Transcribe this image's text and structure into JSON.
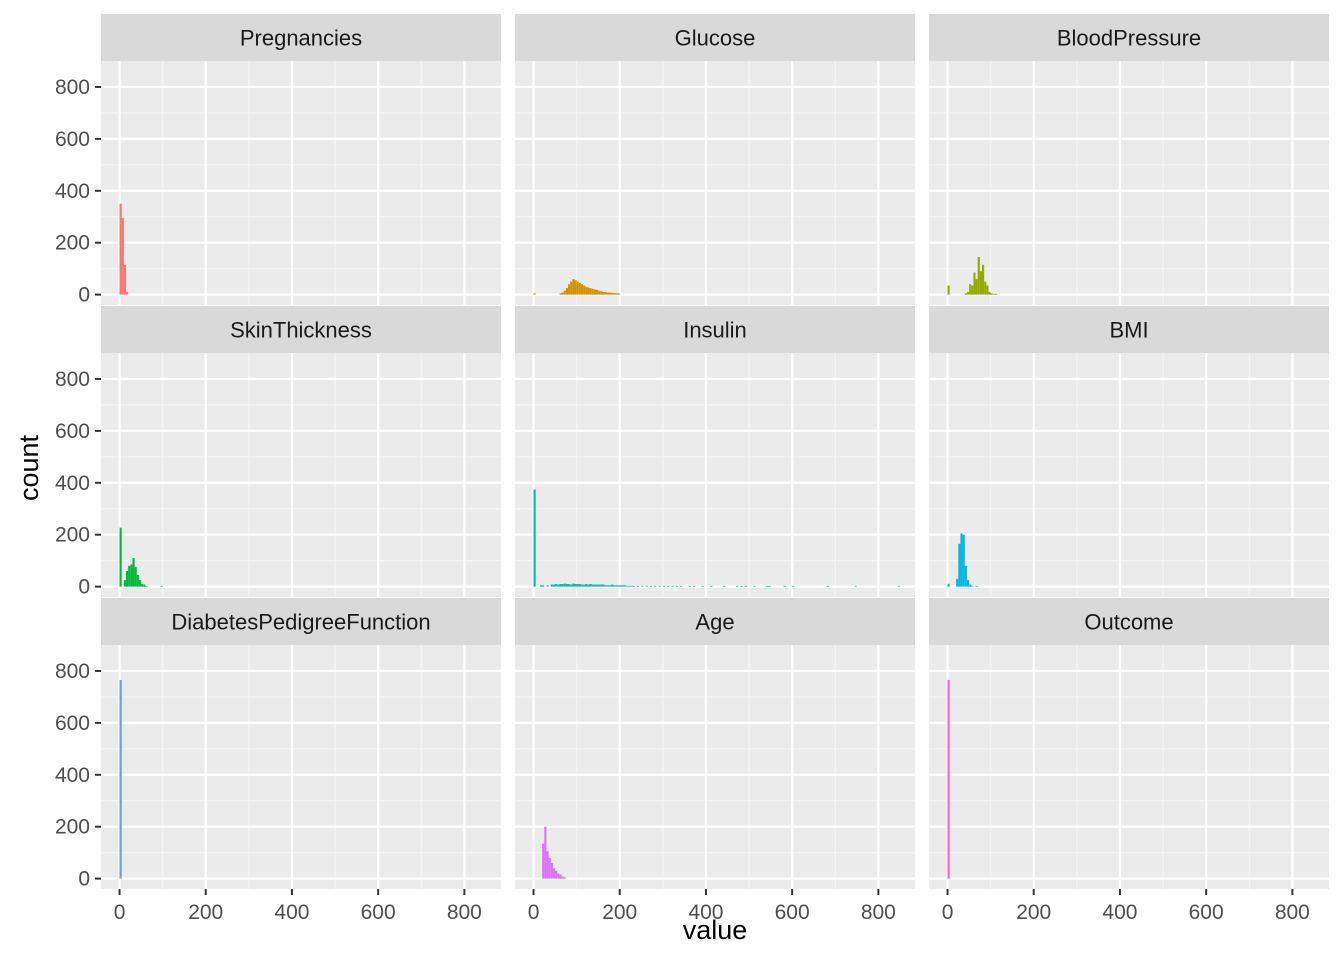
{
  "chart_data": {
    "type": "bar",
    "xlabel": "value",
    "ylabel": "count",
    "xlim": [
      -43,
      885
    ],
    "ylim": [
      -40,
      900
    ],
    "x_ticks": [
      0,
      200,
      400,
      600,
      800
    ],
    "y_ticks": [
      0,
      200,
      400,
      600,
      800
    ],
    "x_tick_labels": [
      "0",
      "200",
      "400",
      "600",
      "800"
    ],
    "y_tick_labels": [
      "0",
      "200",
      "400",
      "600",
      "800"
    ],
    "grid": true,
    "legend": "none",
    "bin_width": 5,
    "panels": [
      {
        "name": "Pregnancies",
        "color": "#F8766D",
        "bins": [
          [
            0,
            350
          ],
          [
            5,
            295
          ],
          [
            10,
            115
          ],
          [
            15,
            10
          ]
        ]
      },
      {
        "name": "Glucose",
        "color": "#D39200",
        "bins": [
          [
            0,
            5
          ],
          [
            60,
            5
          ],
          [
            65,
            8
          ],
          [
            70,
            15
          ],
          [
            75,
            25
          ],
          [
            80,
            40
          ],
          [
            85,
            50
          ],
          [
            90,
            60
          ],
          [
            95,
            55
          ],
          [
            100,
            50
          ],
          [
            105,
            45
          ],
          [
            110,
            40
          ],
          [
            115,
            35
          ],
          [
            120,
            30
          ],
          [
            125,
            27
          ],
          [
            130,
            25
          ],
          [
            135,
            22
          ],
          [
            140,
            20
          ],
          [
            145,
            18
          ],
          [
            150,
            15
          ],
          [
            155,
            13
          ],
          [
            160,
            10
          ],
          [
            165,
            10
          ],
          [
            170,
            8
          ],
          [
            175,
            8
          ],
          [
            180,
            7
          ],
          [
            185,
            6
          ],
          [
            190,
            5
          ],
          [
            195,
            5
          ]
        ]
      },
      {
        "name": "BloodPressure",
        "color": "#93AA00",
        "bins": [
          [
            0,
            35
          ],
          [
            40,
            5
          ],
          [
            45,
            10
          ],
          [
            50,
            40
          ],
          [
            55,
            35
          ],
          [
            60,
            85
          ],
          [
            65,
            60
          ],
          [
            70,
            145
          ],
          [
            75,
            90
          ],
          [
            80,
            115
          ],
          [
            85,
            50
          ],
          [
            90,
            35
          ],
          [
            95,
            10
          ],
          [
            100,
            5
          ],
          [
            105,
            3
          ],
          [
            110,
            3
          ]
        ]
      },
      {
        "name": "SkinThickness",
        "color": "#00BA38",
        "bins": [
          [
            0,
            227
          ],
          [
            10,
            25
          ],
          [
            15,
            60
          ],
          [
            20,
            80
          ],
          [
            25,
            85
          ],
          [
            30,
            110
          ],
          [
            35,
            75
          ],
          [
            40,
            45
          ],
          [
            45,
            25
          ],
          [
            50,
            10
          ],
          [
            55,
            8
          ],
          [
            60,
            3
          ],
          [
            95,
            3
          ]
        ]
      },
      {
        "name": "Insulin",
        "color": "#00C19F",
        "bins": [
          [
            0,
            374
          ],
          [
            15,
            5
          ],
          [
            20,
            5
          ],
          [
            30,
            5
          ],
          [
            40,
            8
          ],
          [
            45,
            8
          ],
          [
            50,
            10
          ],
          [
            55,
            8
          ],
          [
            60,
            10
          ],
          [
            65,
            10
          ],
          [
            70,
            12
          ],
          [
            75,
            10
          ],
          [
            80,
            10
          ],
          [
            85,
            8
          ],
          [
            90,
            12
          ],
          [
            95,
            10
          ],
          [
            100,
            10
          ],
          [
            105,
            10
          ],
          [
            110,
            8
          ],
          [
            115,
            8
          ],
          [
            120,
            10
          ],
          [
            125,
            8
          ],
          [
            130,
            10
          ],
          [
            135,
            8
          ],
          [
            140,
            8
          ],
          [
            145,
            8
          ],
          [
            150,
            8
          ],
          [
            155,
            8
          ],
          [
            160,
            8
          ],
          [
            165,
            5
          ],
          [
            170,
            5
          ],
          [
            175,
            5
          ],
          [
            180,
            8
          ],
          [
            185,
            5
          ],
          [
            190,
            5
          ],
          [
            195,
            5
          ],
          [
            200,
            5
          ],
          [
            205,
            5
          ],
          [
            210,
            5
          ],
          [
            215,
            3
          ],
          [
            220,
            3
          ],
          [
            225,
            3
          ],
          [
            230,
            3
          ],
          [
            240,
            3
          ],
          [
            250,
            3
          ],
          [
            260,
            3
          ],
          [
            270,
            3
          ],
          [
            280,
            3
          ],
          [
            290,
            3
          ],
          [
            300,
            3
          ],
          [
            310,
            3
          ],
          [
            320,
            3
          ],
          [
            330,
            3
          ],
          [
            340,
            3
          ],
          [
            360,
            3
          ],
          [
            370,
            3
          ],
          [
            390,
            3
          ],
          [
            410,
            3
          ],
          [
            440,
            3
          ],
          [
            470,
            3
          ],
          [
            480,
            3
          ],
          [
            490,
            3
          ],
          [
            510,
            3
          ],
          [
            540,
            3
          ],
          [
            545,
            3
          ],
          [
            580,
            3
          ],
          [
            600,
            3
          ],
          [
            680,
            3
          ],
          [
            745,
            3
          ],
          [
            845,
            3
          ]
        ]
      },
      {
        "name": "BMI",
        "color": "#00B9E3",
        "bins": [
          [
            0,
            11
          ],
          [
            20,
            30
          ],
          [
            25,
            165
          ],
          [
            30,
            205
          ],
          [
            35,
            200
          ],
          [
            40,
            80
          ],
          [
            45,
            25
          ],
          [
            50,
            8
          ],
          [
            55,
            3
          ],
          [
            65,
            3
          ]
        ]
      },
      {
        "name": "DiabetesPedigreeFunction",
        "color": "#619CFF",
        "bins": [
          [
            0,
            765
          ]
        ]
      },
      {
        "name": "Age",
        "color": "#DB72FB",
        "bins": [
          [
            20,
            135
          ],
          [
            25,
            200
          ],
          [
            30,
            105
          ],
          [
            35,
            80
          ],
          [
            40,
            60
          ],
          [
            45,
            40
          ],
          [
            50,
            30
          ],
          [
            55,
            20
          ],
          [
            60,
            15
          ],
          [
            65,
            8
          ],
          [
            70,
            5
          ]
        ]
      },
      {
        "name": "Outcome",
        "color": "#FF61C3",
        "bins": [
          [
            0,
            765
          ]
        ]
      }
    ]
  }
}
